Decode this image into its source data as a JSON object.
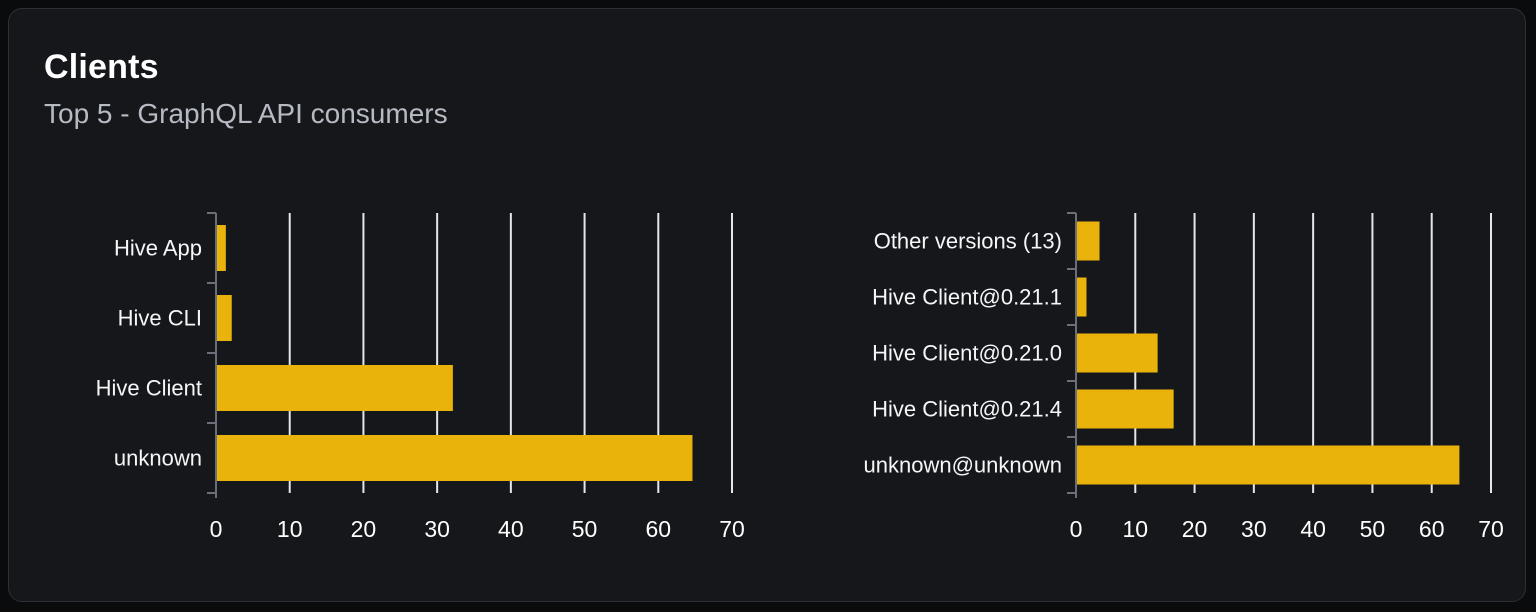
{
  "card": {
    "title": "Clients",
    "subtitle": "Top 5 - GraphQL API consumers"
  },
  "colors": {
    "page_bg": "#0a0b0d",
    "card_bg": "#15171b",
    "card_border": "#2c2f35",
    "title": "#ffffff",
    "subtitle": "#b6bac2",
    "bar": "#e9b30c",
    "grid": "#e2e7ef",
    "axis": "#6a6e78",
    "tick_label": "#ffffff",
    "category_label": "#f5f6f7"
  },
  "chart_data": [
    {
      "type": "bar",
      "orientation": "horizontal",
      "name": "clients-by-name",
      "categories": [
        "Hive App",
        "Hive CLI",
        "Hive Client",
        "unknown"
      ],
      "values": [
        1.2,
        2,
        32,
        64.5
      ],
      "xlim": [
        0,
        70
      ],
      "xticks": [
        0,
        10,
        20,
        30,
        40,
        50,
        60,
        70
      ],
      "grid": true,
      "legend": "none",
      "bar_color": "#e9b30c"
    },
    {
      "type": "bar",
      "orientation": "horizontal",
      "name": "clients-by-version",
      "categories": [
        "Other versions (13)",
        "Hive Client@0.21.1",
        "Hive Client@0.21.0",
        "Hive Client@0.21.4",
        "unknown@unknown"
      ],
      "values": [
        3.8,
        1.6,
        13.6,
        16.3,
        64.5
      ],
      "xlim": [
        0,
        70
      ],
      "xticks": [
        0,
        10,
        20,
        30,
        40,
        50,
        60,
        70
      ],
      "grid": true,
      "legend": "none",
      "bar_color": "#e9b30c"
    }
  ]
}
